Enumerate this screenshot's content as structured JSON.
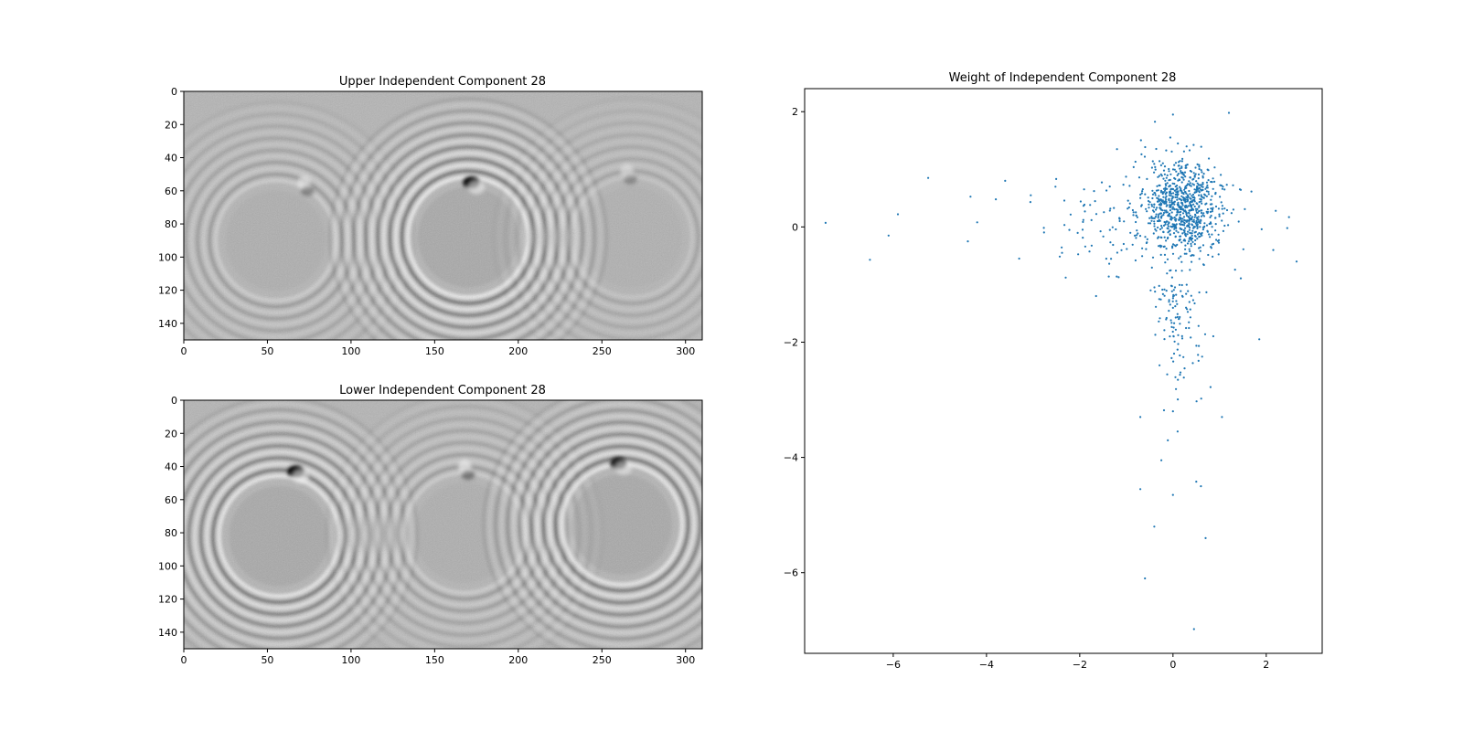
{
  "chart_data": [
    {
      "type": "heatmap",
      "title": "Upper Independent Component 28",
      "colormap": "gray",
      "xlim": [
        0,
        310
      ],
      "ylim": [
        150,
        0
      ],
      "x_ticks": [
        0,
        50,
        100,
        150,
        200,
        250,
        300
      ],
      "y_ticks": [
        0,
        20,
        40,
        60,
        80,
        100,
        120,
        140
      ],
      "features": [
        {
          "kind": "ring-pattern",
          "center": [
            55,
            90
          ],
          "strength": 0.45
        },
        {
          "kind": "ring-pattern",
          "center": [
            170,
            88
          ],
          "strength": 1.0
        },
        {
          "kind": "ring-pattern",
          "center": [
            268,
            88
          ],
          "strength": 0.3
        },
        {
          "kind": "dark-spot",
          "center": [
            172,
            55
          ],
          "strength": 1.0
        },
        {
          "kind": "dipole-spot",
          "center": [
            72,
            55
          ],
          "strength": 0.6
        },
        {
          "kind": "dipole-spot",
          "center": [
            265,
            48
          ],
          "strength": 0.5
        }
      ]
    },
    {
      "type": "heatmap",
      "title": "Lower Independent Component 28",
      "colormap": "gray",
      "xlim": [
        0,
        310
      ],
      "ylim": [
        150,
        0
      ],
      "x_ticks": [
        0,
        50,
        100,
        150,
        200,
        250,
        300
      ],
      "y_ticks": [
        0,
        20,
        40,
        60,
        80,
        100,
        120,
        140
      ],
      "features": [
        {
          "kind": "ring-pattern",
          "center": [
            57,
            82
          ],
          "strength": 0.95
        },
        {
          "kind": "ring-pattern",
          "center": [
            168,
            80
          ],
          "strength": 0.45
        },
        {
          "kind": "ring-pattern",
          "center": [
            262,
            75
          ],
          "strength": 0.95
        },
        {
          "kind": "dark-spot",
          "center": [
            67,
            43
          ],
          "strength": 1.0
        },
        {
          "kind": "dipole-spot",
          "center": [
            168,
            40
          ],
          "strength": 0.7
        },
        {
          "kind": "dark-spot",
          "center": [
            260,
            38
          ],
          "strength": 0.9
        }
      ]
    },
    {
      "type": "scatter",
      "title": "Weight of Independent Component 28",
      "marker_color": "#1f77b4",
      "xlim": [
        -7.9,
        3.2
      ],
      "ylim": [
        -7.4,
        2.4
      ],
      "x_ticks": [
        -6,
        -4,
        -2,
        0,
        2
      ],
      "y_ticks": [
        2,
        0,
        -2,
        -4,
        -6
      ],
      "outliers": [
        [
          -7.45,
          0.07
        ],
        [
          -6.5,
          -0.57
        ],
        [
          -6.1,
          -0.15
        ],
        [
          -5.9,
          0.22
        ],
        [
          -5.25,
          0.85
        ],
        [
          -4.4,
          -0.25
        ],
        [
          -4.2,
          0.08
        ],
        [
          -3.8,
          0.48
        ],
        [
          -3.6,
          0.8
        ],
        [
          -3.3,
          -0.55
        ],
        [
          -3.05,
          0.55
        ],
        [
          -2.3,
          -0.88
        ],
        [
          -1.2,
          1.35
        ],
        [
          -1.65,
          -1.2
        ],
        [
          0.0,
          1.95
        ],
        [
          1.2,
          1.98
        ],
        [
          2.65,
          -0.6
        ],
        [
          2.45,
          -0.02
        ],
        [
          2.15,
          -0.4
        ],
        [
          1.85,
          -1.95
        ],
        [
          1.05,
          -3.3
        ],
        [
          -0.6,
          -6.1
        ],
        [
          0.45,
          -6.98
        ],
        [
          0.7,
          -5.4
        ],
        [
          -0.4,
          -5.2
        ],
        [
          -0.7,
          -4.55
        ],
        [
          0.6,
          -4.5
        ],
        [
          0.0,
          -4.65
        ],
        [
          0.5,
          -4.42
        ],
        [
          -0.25,
          -4.05
        ],
        [
          -0.7,
          -3.3
        ],
        [
          0.0,
          -3.2
        ],
        [
          0.1,
          -3.55
        ]
      ]
    }
  ]
}
